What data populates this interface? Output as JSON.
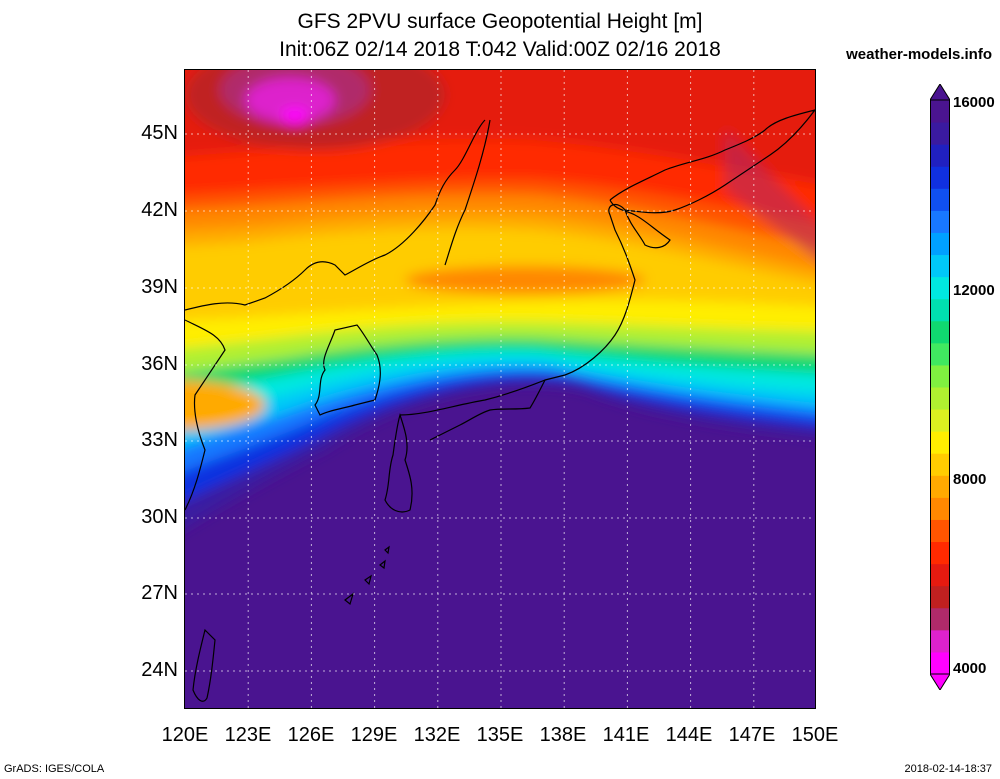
{
  "header": {
    "title_line1": "GFS 2PVU surface Geopotential Height [m]",
    "title_line2": "Init:06Z 02/14 2018 T:042 Valid:00Z 02/16 2018",
    "site": "weather-models.info"
  },
  "map": {
    "lat_labels": [
      "45N",
      "42N",
      "39N",
      "36N",
      "33N",
      "30N",
      "27N",
      "24N"
    ],
    "lon_labels": [
      "120E",
      "123E",
      "126E",
      "129E",
      "132E",
      "135E",
      "138E",
      "141E",
      "144E",
      "147E",
      "150E"
    ]
  },
  "colorbar": {
    "labels": [
      "16000",
      "12000",
      "8000",
      "4000"
    ],
    "colors": [
      "#ff00ff",
      "#dd22cc",
      "#b02a6a",
      "#c02020",
      "#e51a10",
      "#ff2a00",
      "#ff5500",
      "#ff8800",
      "#ffaa00",
      "#ffcc00",
      "#ffee00",
      "#ddf020",
      "#b0f030",
      "#80f040",
      "#40e860",
      "#10d870",
      "#00e0b0",
      "#00e8e0",
      "#00c8f8",
      "#00a0ff",
      "#1878ff",
      "#1050f0",
      "#1030e0",
      "#2020c0",
      "#3a1aa0",
      "#4a1490"
    ]
  },
  "footer": {
    "left": "GrADS: IGES/COLA",
    "right": "2018-02-14-18:37"
  }
}
